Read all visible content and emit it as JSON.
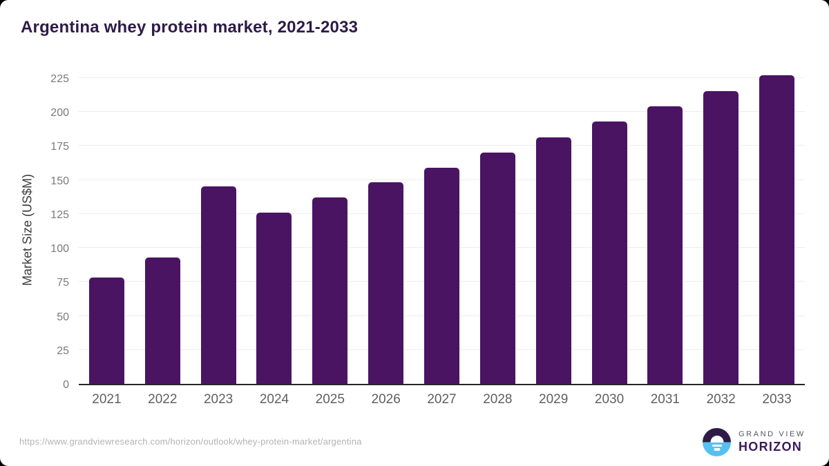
{
  "header": {
    "title": "Argentina whey protein market, 2021-2033"
  },
  "footer": {
    "source_url": "https://www.grandviewresearch.com/horizon/outlook/whey-protein-market/argentina",
    "logo": {
      "top": "GRAND VIEW",
      "bottom": "HORIZON"
    }
  },
  "colors": {
    "bar": "#4a1463",
    "title_text": "#2e1a47",
    "grid": "#ececec",
    "baseline": "#262626",
    "ytick_text": "#7a7a7a",
    "xtick_text": "#5f5f5f",
    "axis_title_text": "#3c3c3c",
    "url_text": "#b3b3b3",
    "logo_blue": "#56c1f0",
    "logo_dark_purple": "#2e1a47",
    "logo_horizon_purple": "#3a1a5c",
    "logo_grandview_gray": "#55555f"
  },
  "chart_data": {
    "type": "bar",
    "title": "Argentina whey protein market, 2021-2033",
    "categories": [
      "2021",
      "2022",
      "2023",
      "2024",
      "2025",
      "2026",
      "2027",
      "2028",
      "2029",
      "2030",
      "2031",
      "2032",
      "2033"
    ],
    "values": [
      78,
      93,
      145,
      126,
      137,
      148,
      159,
      170,
      181,
      193,
      204,
      215,
      227
    ],
    "xlabel": "",
    "ylabel": "Market Size (US$M)",
    "ylim": [
      0,
      235
    ],
    "yticks": [
      0,
      25,
      50,
      75,
      100,
      125,
      150,
      175,
      200,
      225
    ],
    "grid": "horizontal",
    "legend": "none",
    "bar_color": "#4a1463"
  }
}
